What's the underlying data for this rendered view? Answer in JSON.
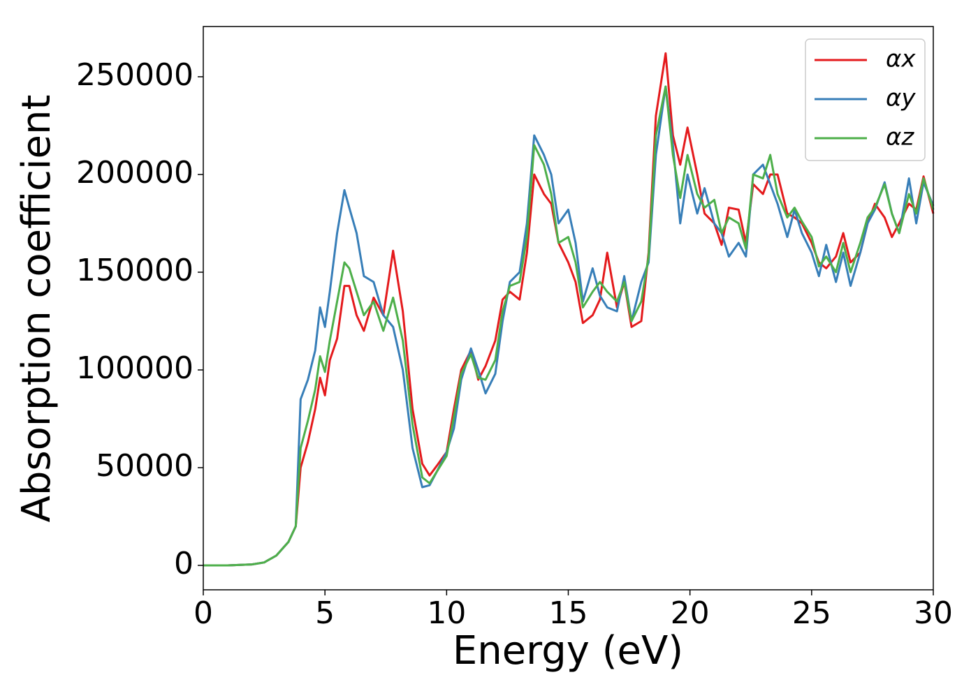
{
  "chart_data": {
    "type": "line",
    "xlabel": "Energy (eV)",
    "ylabel": "Absorption coefficient",
    "xlim": [
      0,
      30
    ],
    "ylim": [
      -12500,
      275700
    ],
    "xticks": [
      0,
      5,
      10,
      15,
      20,
      25,
      30
    ],
    "yticks": [
      0,
      50000,
      100000,
      150000,
      200000,
      250000
    ],
    "grid": false,
    "legend": "upper right",
    "x": [
      0,
      1,
      2,
      2.5,
      3,
      3.5,
      3.8,
      4,
      4.3,
      4.6,
      4.8,
      5,
      5.2,
      5.5,
      5.8,
      6,
      6.3,
      6.6,
      7,
      7.4,
      7.8,
      8.2,
      8.6,
      9,
      9.3,
      9.6,
      10,
      10.3,
      10.6,
      11,
      11.3,
      11.6,
      12,
      12.3,
      12.6,
      13,
      13.3,
      13.6,
      14,
      14.3,
      14.6,
      15,
      15.3,
      15.6,
      16,
      16.3,
      16.6,
      17,
      17.3,
      17.6,
      18,
      18.3,
      18.6,
      19,
      19.3,
      19.6,
      19.9,
      20.3,
      20.6,
      21,
      21.3,
      21.6,
      22,
      22.3,
      22.6,
      23,
      23.3,
      23.6,
      24,
      24.3,
      24.6,
      25,
      25.3,
      25.6,
      26,
      26.3,
      26.6,
      27,
      27.3,
      27.6,
      28,
      28.3,
      28.6,
      29,
      29.3,
      29.6,
      30
    ],
    "series": [
      {
        "name": "αx",
        "color": "#e41a1c",
        "values": [
          0,
          0,
          500,
          1500,
          5000,
          12000,
          20000,
          50000,
          63000,
          80000,
          96000,
          87000,
          105000,
          116000,
          143000,
          143000,
          128000,
          120000,
          137000,
          128000,
          161000,
          130000,
          80000,
          52000,
          46000,
          51000,
          58000,
          80000,
          100000,
          110000,
          95000,
          102000,
          115000,
          136000,
          140000,
          136000,
          160000,
          200000,
          190000,
          185000,
          165000,
          155000,
          145000,
          124000,
          128000,
          136000,
          160000,
          132000,
          145000,
          122000,
          125000,
          160000,
          230000,
          262000,
          220000,
          205000,
          224000,
          200000,
          180000,
          175000,
          164000,
          183000,
          182000,
          165000,
          195000,
          190000,
          200000,
          200000,
          180000,
          178000,
          175000,
          165000,
          155000,
          152000,
          158000,
          170000,
          155000,
          160000,
          175000,
          185000,
          178000,
          168000,
          175000,
          185000,
          182000,
          199000,
          180000
        ]
      },
      {
        "name": "αy",
        "color": "#377eb8",
        "values": [
          0,
          0,
          500,
          1500,
          5000,
          12000,
          20000,
          85000,
          95000,
          110000,
          132000,
          122000,
          140000,
          170000,
          192000,
          183000,
          170000,
          148000,
          145000,
          128000,
          122000,
          100000,
          60000,
          40000,
          41000,
          48000,
          58000,
          70000,
          95000,
          111000,
          100000,
          88000,
          98000,
          125000,
          145000,
          150000,
          175000,
          220000,
          210000,
          200000,
          175000,
          182000,
          165000,
          135000,
          152000,
          138000,
          132000,
          130000,
          148000,
          125000,
          145000,
          155000,
          210000,
          245000,
          215000,
          175000,
          200000,
          180000,
          193000,
          175000,
          170000,
          158000,
          165000,
          158000,
          200000,
          205000,
          195000,
          185000,
          168000,
          182000,
          170000,
          160000,
          148000,
          164000,
          145000,
          160000,
          143000,
          160000,
          175000,
          182000,
          196000,
          180000,
          170000,
          198000,
          175000,
          196000,
          184000
        ]
      },
      {
        "name": "αz",
        "color": "#4daf4a",
        "values": [
          0,
          0,
          500,
          1500,
          5000,
          12000,
          20000,
          60000,
          74000,
          90000,
          107000,
          99000,
          115000,
          135000,
          155000,
          152000,
          140000,
          128000,
          135000,
          120000,
          137000,
          115000,
          72000,
          45000,
          42000,
          48000,
          56000,
          76000,
          98000,
          108000,
          96000,
          95000,
          105000,
          130000,
          143000,
          145000,
          168000,
          215000,
          205000,
          190000,
          165000,
          168000,
          155000,
          132000,
          140000,
          145000,
          140000,
          135000,
          145000,
          125000,
          135000,
          158000,
          220000,
          245000,
          210000,
          188000,
          210000,
          190000,
          183000,
          187000,
          170000,
          178000,
          175000,
          162000,
          200000,
          198000,
          210000,
          190000,
          178000,
          183000,
          176000,
          168000,
          153000,
          158000,
          150000,
          165000,
          150000,
          165000,
          178000,
          183000,
          195000,
          180000,
          170000,
          190000,
          180000,
          198000,
          182000
        ]
      }
    ]
  }
}
